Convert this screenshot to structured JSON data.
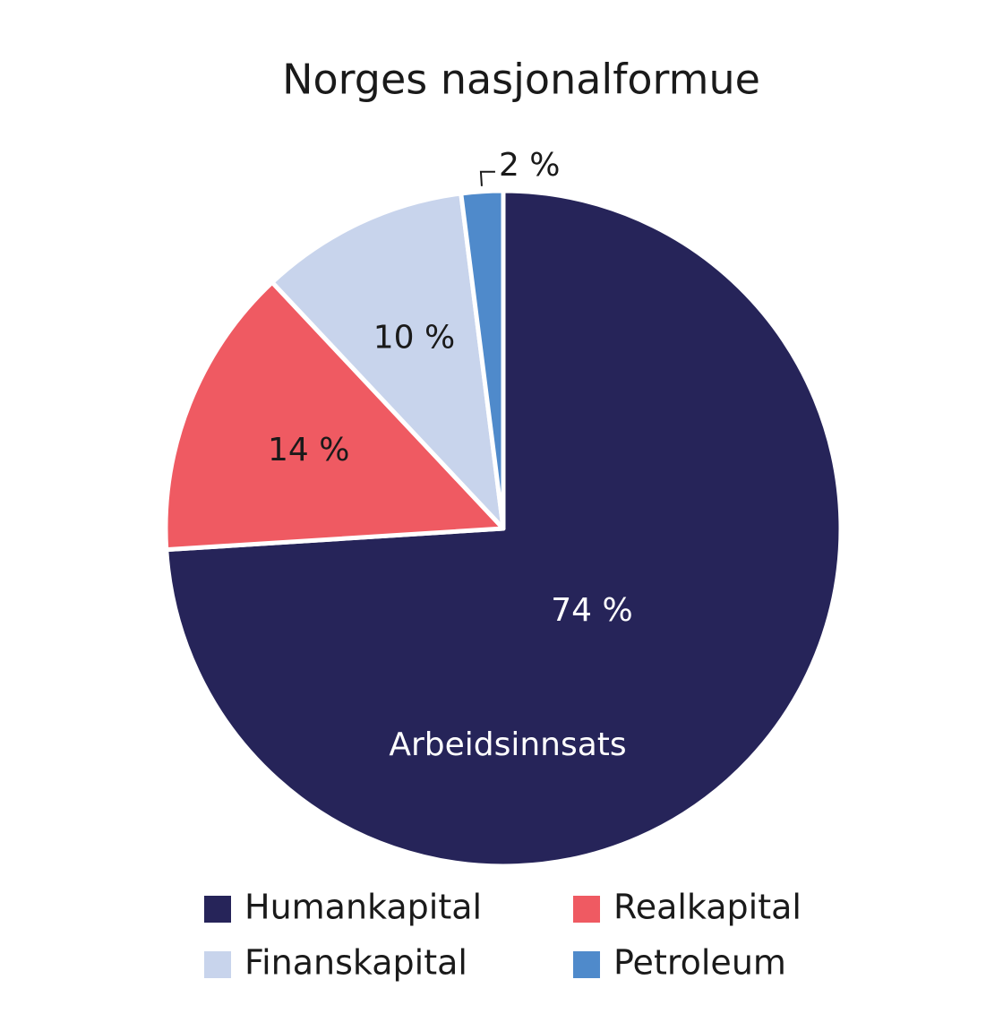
{
  "chart_data": {
    "type": "pie",
    "title": "Norges nasjonalformue",
    "categories": [
      "Humankapital",
      "Realkapital",
      "Finanskapital",
      "Petroleum"
    ],
    "values": [
      74,
      14,
      10,
      2
    ],
    "value_labels": [
      "74 %",
      "14 %",
      "10 %",
      "2 %"
    ],
    "colors": [
      "#262459",
      "#ef5a62",
      "#c8d4ec",
      "#4f8acb"
    ],
    "annotation": "Arbeidsinnsats"
  }
}
